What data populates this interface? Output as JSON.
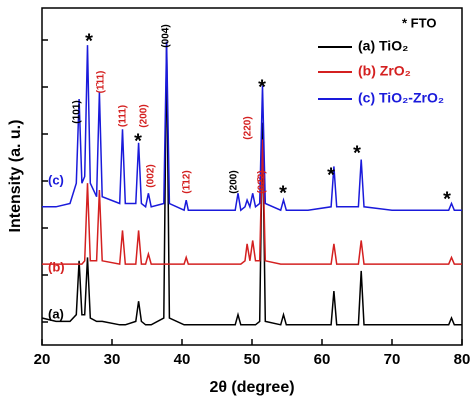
{
  "chart_data": {
    "type": "line",
    "xlabel": "2θ (degree)",
    "ylabel": "Intensity (a. u.)",
    "xlim": [
      20,
      80
    ],
    "xticks": [
      20,
      30,
      40,
      50,
      60,
      70,
      80
    ],
    "ylim": [
      0,
      100
    ],
    "legend_note": "* FTO",
    "legend": "upper right",
    "x": [
      20,
      22,
      24,
      24.9,
      25.3,
      25.7,
      26.1,
      26.5,
      26.9,
      27.8,
      28.2,
      28.6,
      31.1,
      31.5,
      31.9,
      33.4,
      33.8,
      34.2,
      34.8,
      35.2,
      35.6,
      37.4,
      37.8,
      38.2,
      40.3,
      40.6,
      40.9,
      43,
      45,
      47.6,
      48,
      48.4,
      49,
      49.3,
      49.7,
      50.1,
      50.5,
      51.1,
      51.5,
      51.9,
      54.1,
      54.5,
      54.9,
      58,
      61.3,
      61.7,
      62.1,
      65.2,
      65.6,
      66,
      70,
      75,
      78.1,
      78.5,
      78.9,
      80
    ],
    "series": [
      {
        "name": "(a) TiO₂",
        "tag": "(a)",
        "color": "#000000",
        "values": [
          8,
          7,
          7,
          9,
          25,
          9,
          9,
          26,
          8,
          7,
          7,
          7,
          6,
          6,
          6,
          7,
          13,
          7,
          6,
          6,
          6,
          8,
          90,
          8,
          6,
          6,
          6,
          6,
          6,
          6,
          9,
          6,
          6,
          6,
          6,
          6,
          6,
          7,
          66,
          7,
          6,
          9,
          6,
          6,
          6,
          16,
          6,
          6,
          22,
          6,
          6,
          6,
          6,
          8,
          6,
          6
        ]
      },
      {
        "name": "(b) ZrO₂",
        "tag": "(b)",
        "color": "#d42020",
        "values": [
          24,
          24,
          24,
          24,
          24,
          24,
          25,
          48,
          25,
          25,
          46,
          25,
          24,
          34,
          24,
          24,
          34,
          24,
          24,
          27,
          24,
          24,
          24,
          24,
          24,
          26,
          24,
          24,
          24,
          24,
          24,
          24,
          25,
          30,
          25,
          31,
          25,
          25,
          61,
          25,
          24,
          24,
          24,
          24,
          24,
          30,
          24,
          24,
          31,
          24,
          24,
          24,
          24,
          26,
          24,
          24
        ]
      },
      {
        "name": "(c) TiO₂-ZrO₂",
        "tag": "(c)",
        "color": "#1a1adb",
        "values": [
          41,
          41,
          42,
          48,
          73,
          48,
          50,
          89,
          48,
          44,
          75,
          44,
          42,
          64,
          42,
          42,
          60,
          42,
          41,
          45,
          41,
          42,
          90,
          42,
          40,
          43,
          40,
          40,
          40,
          40,
          45,
          40,
          41,
          43,
          41,
          45,
          41,
          42,
          77,
          42,
          40,
          43,
          40,
          40,
          41,
          53,
          41,
          41,
          55,
          41,
          40,
          40,
          40,
          42,
          40,
          40
        ]
      }
    ],
    "annotations": [
      {
        "text": "(101)",
        "color": "#000000"
      },
      {
        "text": "(1̄11)",
        "color": "#d42020"
      },
      {
        "text": "(111)",
        "color": "#d42020"
      },
      {
        "text": "(200)",
        "color": "#d42020"
      },
      {
        "text": "(004)",
        "color": "#000000"
      },
      {
        "text": "(002)",
        "color": "#d42020"
      },
      {
        "text": "(1̄12)",
        "color": "#d42020"
      },
      {
        "text": "(200)",
        "color": "#000000"
      },
      {
        "text": "(220)",
        "color": "#d42020"
      },
      {
        "text": "(02̄2)",
        "color": "#d42020"
      },
      {
        "text": "*",
        "color": "#000000"
      },
      {
        "text": "*",
        "color": "#000000"
      },
      {
        "text": "*",
        "color": "#000000"
      },
      {
        "text": "*",
        "color": "#000000"
      },
      {
        "text": "*",
        "color": "#000000"
      },
      {
        "text": "*",
        "color": "#000000"
      },
      {
        "text": "*",
        "color": "#000000"
      }
    ]
  }
}
